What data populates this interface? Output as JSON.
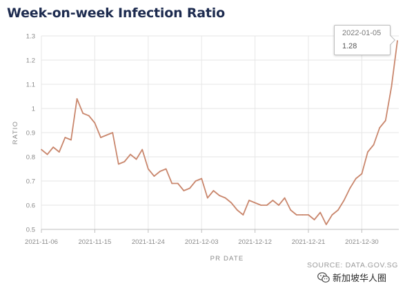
{
  "chart_data": {
    "type": "line",
    "title": "Week-on-week Infection Ratio",
    "xlabel": "PR DATE",
    "ylabel": "RATIO",
    "ylim": [
      0.5,
      1.3
    ],
    "y_ticks": [
      "0.5",
      "0.6",
      "0.7",
      "0.8",
      "0.9",
      "1",
      "1.1",
      "1.2",
      "1.3"
    ],
    "x_ticks": [
      "2021-11-06",
      "2021-11-15",
      "2021-11-24",
      "2021-12-03",
      "2021-12-12",
      "2021-12-21",
      "2021-12-30"
    ],
    "x_start": "2021-11-06",
    "x": [
      "2021-11-06",
      "2021-11-07",
      "2021-11-08",
      "2021-11-09",
      "2021-11-10",
      "2021-11-11",
      "2021-11-12",
      "2021-11-13",
      "2021-11-14",
      "2021-11-15",
      "2021-11-16",
      "2021-11-17",
      "2021-11-18",
      "2021-11-19",
      "2021-11-20",
      "2021-11-21",
      "2021-11-22",
      "2021-11-23",
      "2021-11-24",
      "2021-11-25",
      "2021-11-26",
      "2021-11-27",
      "2021-11-28",
      "2021-11-29",
      "2021-11-30",
      "2021-12-01",
      "2021-12-02",
      "2021-12-03",
      "2021-12-04",
      "2021-12-05",
      "2021-12-06",
      "2021-12-07",
      "2021-12-08",
      "2021-12-09",
      "2021-12-10",
      "2021-12-11",
      "2021-12-12",
      "2021-12-13",
      "2021-12-14",
      "2021-12-15",
      "2021-12-16",
      "2021-12-17",
      "2021-12-18",
      "2021-12-19",
      "2021-12-20",
      "2021-12-21",
      "2021-12-22",
      "2021-12-23",
      "2021-12-24",
      "2021-12-25",
      "2021-12-26",
      "2021-12-27",
      "2021-12-28",
      "2021-12-29",
      "2021-12-30",
      "2021-12-31",
      "2022-01-01",
      "2022-01-02",
      "2022-01-03",
      "2022-01-04",
      "2022-01-05"
    ],
    "series": [
      {
        "values": [
          0.83,
          0.81,
          0.84,
          0.82,
          0.88,
          0.87,
          1.04,
          0.98,
          0.97,
          0.94,
          0.88,
          0.89,
          0.9,
          0.77,
          0.78,
          0.81,
          0.79,
          0.83,
          0.75,
          0.72,
          0.74,
          0.75,
          0.69,
          0.69,
          0.66,
          0.67,
          0.7,
          0.71,
          0.63,
          0.66,
          0.64,
          0.63,
          0.61,
          0.58,
          0.56,
          0.62,
          0.61,
          0.6,
          0.6,
          0.62,
          0.6,
          0.63,
          0.58,
          0.56,
          0.56,
          0.56,
          0.54,
          0.57,
          0.52,
          0.56,
          0.58,
          0.62,
          0.67,
          0.71,
          0.73,
          0.82,
          0.85,
          0.92,
          0.95,
          1.09,
          1.28
        ],
        "color": "#c9866c"
      }
    ],
    "grid": true,
    "tooltip": {
      "date": "2022-01-05",
      "value": "1.28"
    }
  },
  "source": "SOURCE: DATA.GOV.SG",
  "watermark": "新加坡华人圈",
  "colors": {
    "line": "#c9866c",
    "title": "#1d2b4f",
    "grid": "#e6e6e6",
    "axis": "#bdbdbd",
    "tick": "#8a8a8a"
  }
}
